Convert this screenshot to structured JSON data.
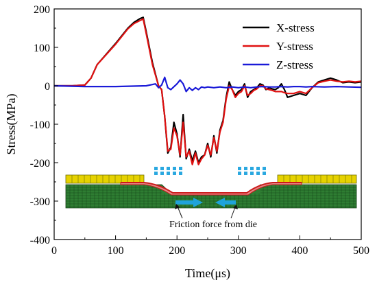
{
  "chart_data": {
    "type": "line",
    "title": "",
    "xlabel": "Time(μs)",
    "ylabel": "Stress(MPa)",
    "xlim": [
      0,
      500
    ],
    "ylim": [
      -400,
      200
    ],
    "xticks": [
      0,
      100,
      200,
      300,
      400,
      500
    ],
    "yticks": [
      -400,
      -300,
      -200,
      -100,
      0,
      100,
      200
    ],
    "grid": false,
    "legend": {
      "placement": "top-right"
    },
    "series": [
      {
        "name": "X-stress",
        "color": "#000000",
        "x": [
          0,
          30,
          50,
          60,
          70,
          100,
          120,
          130,
          140,
          145,
          150,
          160,
          170,
          175,
          180,
          185,
          190,
          195,
          200,
          205,
          210,
          215,
          220,
          225,
          230,
          235,
          240,
          245,
          250,
          255,
          260,
          265,
          270,
          275,
          280,
          285,
          290,
          295,
          300,
          305,
          310,
          315,
          320,
          325,
          330,
          335,
          340,
          345,
          350,
          355,
          360,
          365,
          370,
          375,
          380,
          390,
          400,
          410,
          420,
          430,
          440,
          450,
          460,
          470,
          480,
          490,
          500
        ],
        "y": [
          0,
          0,
          2,
          20,
          55,
          110,
          150,
          165,
          175,
          178,
          140,
          60,
          0,
          -10,
          -80,
          -175,
          -160,
          -95,
          -125,
          -185,
          -75,
          -190,
          -165,
          -195,
          -170,
          -200,
          -185,
          -180,
          -150,
          -185,
          -130,
          -175,
          -115,
          -90,
          -30,
          10,
          -10,
          -25,
          -15,
          -10,
          5,
          -30,
          -15,
          -10,
          -5,
          5,
          2,
          -10,
          -5,
          -8,
          -10,
          -5,
          5,
          -10,
          -30,
          -25,
          -20,
          -25,
          -5,
          10,
          15,
          20,
          15,
          8,
          10,
          8,
          10
        ]
      },
      {
        "name": "Y-stress",
        "color": "#e01010",
        "x": [
          0,
          30,
          50,
          60,
          70,
          100,
          120,
          130,
          140,
          145,
          150,
          160,
          170,
          175,
          180,
          185,
          190,
          195,
          200,
          205,
          210,
          215,
          220,
          225,
          230,
          235,
          240,
          245,
          250,
          255,
          260,
          265,
          270,
          275,
          280,
          285,
          290,
          295,
          300,
          305,
          310,
          315,
          320,
          325,
          330,
          335,
          340,
          345,
          350,
          355,
          360,
          365,
          370,
          375,
          380,
          390,
          400,
          410,
          420,
          430,
          440,
          450,
          460,
          470,
          480,
          490,
          500
        ],
        "y": [
          0,
          0,
          2,
          20,
          55,
          108,
          148,
          162,
          170,
          174,
          135,
          55,
          0,
          -10,
          -80,
          -170,
          -165,
          -110,
          -130,
          -180,
          -95,
          -185,
          -170,
          -205,
          -175,
          -205,
          -190,
          -180,
          -155,
          -180,
          -135,
          -170,
          -120,
          -95,
          -35,
          0,
          -10,
          -30,
          -20,
          -15,
          0,
          -25,
          -20,
          -12,
          -8,
          0,
          0,
          -8,
          -10,
          -12,
          -15,
          -15,
          -15,
          -18,
          -20,
          -20,
          -15,
          -20,
          -5,
          8,
          12,
          15,
          12,
          10,
          12,
          10,
          12
        ]
      },
      {
        "name": "Z-stress",
        "color": "#1a1ad8",
        "x": [
          0,
          50,
          100,
          150,
          165,
          170,
          175,
          180,
          185,
          190,
          200,
          205,
          210,
          215,
          220,
          225,
          230,
          235,
          240,
          245,
          250,
          260,
          270,
          280,
          290,
          300,
          310,
          320,
          330,
          340,
          350,
          360,
          370,
          380,
          390,
          400,
          410,
          420,
          440,
          460,
          480,
          500
        ],
        "y": [
          0,
          -2,
          -2,
          0,
          5,
          -5,
          2,
          22,
          -5,
          -10,
          5,
          15,
          5,
          -15,
          -5,
          -12,
          -5,
          -10,
          -3,
          -5,
          -3,
          -5,
          -3,
          -5,
          -3,
          -5,
          -3,
          -5,
          -3,
          -2,
          -3,
          -3,
          -2,
          -3,
          -2,
          -2,
          -3,
          -2,
          -3,
          -2,
          -3,
          -4
        ]
      }
    ],
    "annotations": [
      {
        "text": "Friction force from die"
      }
    ]
  },
  "colors": {
    "die_plate": "#e6d200",
    "die_edge": "#6b6a00",
    "workpiece": "#2e7d32",
    "workpiece_mesh": "#123d14",
    "sheet_red": "#cc1b1b",
    "sheet_pink": "#e48a8a",
    "pressure_arrows": "#2aa8e0",
    "friction_arrows": "#1fa3da"
  }
}
